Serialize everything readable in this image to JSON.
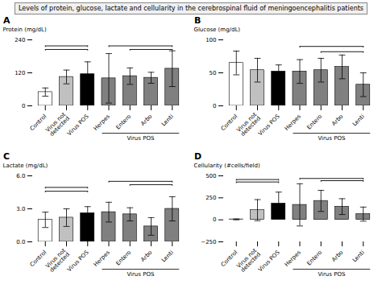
{
  "title": "Levels of protein, glucose, lactate and cellularity in the cerebrospinal fluid of meningoencephalitis patients",
  "chart_data": [
    {
      "type": "bar",
      "title": "A",
      "ylabel": "Protein (mg/dL)",
      "categories": [
        "Control",
        "Virus not\ndetected",
        "Virus POS",
        "Herpes",
        "Entero",
        "Arbo",
        "Lenti"
      ],
      "values": [
        50,
        105,
        115,
        100,
        108,
        102,
        135
      ],
      "errors": [
        15,
        25,
        45,
        90,
        30,
        20,
        65
      ],
      "colors": [
        "white",
        "#c0c0c0",
        "black",
        "#808080",
        "#808080",
        "#808080",
        "#808080"
      ],
      "ylim": [
        0,
        240
      ],
      "yticks": [
        0,
        120,
        240
      ],
      "brackets": [
        {
          "from": "Control",
          "to": "Virus POS",
          "y": 205
        },
        {
          "from": "Control",
          "to": "Virus POS",
          "y": 218
        },
        {
          "from": "Herpes",
          "to": "Lenti",
          "y": 218
        },
        {
          "from": "Entero",
          "to": "Lenti",
          "y": 205
        }
      ],
      "annotations": [
        {
          "text": "Virus POS",
          "from": "Herpes",
          "to": "Lenti"
        }
      ]
    },
    {
      "type": "bar",
      "title": "B",
      "ylabel": "Glucose (mg/dL)",
      "categories": [
        "Control",
        "Virus not\ndetected",
        "Virus POS",
        "Herpes",
        "Entero",
        "Arbo",
        "Lenti"
      ],
      "values": [
        65,
        54,
        52,
        52,
        54,
        59,
        32
      ],
      "errors": [
        18,
        18,
        10,
        18,
        18,
        18,
        18
      ],
      "colors": [
        "white",
        "#c0c0c0",
        "black",
        "#808080",
        "#808080",
        "#808080",
        "#808080"
      ],
      "ylim": [
        0,
        100
      ],
      "yticks": [
        0,
        50,
        100
      ],
      "brackets": [
        {
          "from": "Herpes",
          "to": "Lenti",
          "y": 90
        },
        {
          "from": "Entero",
          "to": "Lenti",
          "y": 82
        }
      ],
      "annotations": [
        {
          "text": "Virus POS",
          "from": "Herpes",
          "to": "Lenti"
        }
      ]
    },
    {
      "type": "bar",
      "title": "C",
      "ylabel": "Lactate (mg/dL)",
      "categories": [
        "Control",
        "Virus not\ndetected",
        "Virus POS",
        "Herpes",
        "Entero",
        "Arbo",
        "Lenti"
      ],
      "values": [
        2.0,
        2.2,
        2.6,
        2.7,
        2.5,
        1.4,
        3.0
      ],
      "errors": [
        0.7,
        0.8,
        0.6,
        0.9,
        0.6,
        0.8,
        1.1
      ],
      "colors": [
        "white",
        "#c0c0c0",
        "black",
        "#808080",
        "#808080",
        "#808080",
        "#808080"
      ],
      "ylim": [
        0,
        6
      ],
      "yticks": [
        0,
        3,
        6
      ],
      "brackets": [
        {
          "from": "Control",
          "to": "Virus POS",
          "y": 4.6
        },
        {
          "from": "Control",
          "to": "Virus POS",
          "y": 4.95
        },
        {
          "from": "Herpes",
          "to": "Lenti",
          "y": 5.5
        },
        {
          "from": "Entero",
          "to": "Lenti",
          "y": 5.2
        }
      ],
      "annotations": [
        {
          "text": "Virus POS",
          "from": "Herpes",
          "to": "Lenti"
        }
      ]
    },
    {
      "type": "bar",
      "title": "D",
      "ylabel": "Cellularity (#cells/field)",
      "categories": [
        "Control",
        "Virus not\ndetected",
        "Virus POS",
        "Herpes",
        "Entero",
        "Arbo",
        "Lenti"
      ],
      "values": [
        5,
        110,
        185,
        170,
        215,
        150,
        65
      ],
      "errors": [
        5,
        120,
        130,
        240,
        120,
        90,
        80
      ],
      "colors": [
        "white",
        "#c0c0c0",
        "black",
        "#808080",
        "#808080",
        "#808080",
        "#808080"
      ],
      "ylim": [
        -250,
        500
      ],
      "yticks": [
        -250,
        0,
        250,
        500
      ],
      "brackets": [
        {
          "from": "Control",
          "to": "Virus POS",
          "y": 430
        },
        {
          "from": "Control",
          "to": "Virus POS",
          "y": 458
        },
        {
          "from": "Herpes",
          "to": "Lenti",
          "y": 470
        },
        {
          "from": "Entero",
          "to": "Lenti",
          "y": 445
        }
      ],
      "annotations": [
        {
          "text": "Virus POS",
          "from": "Herpes",
          "to": "Lenti"
        }
      ]
    }
  ]
}
